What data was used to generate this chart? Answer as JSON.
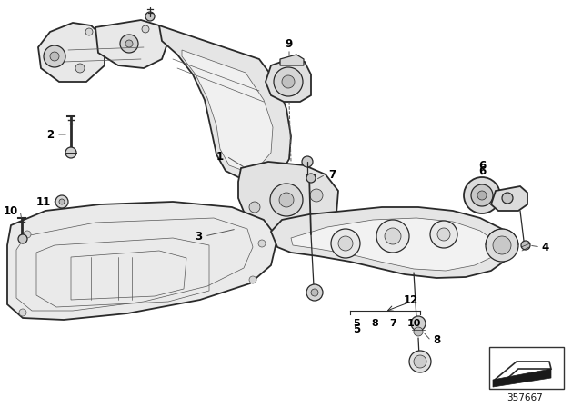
{
  "bg": "#f5f5f5",
  "fg": "#1a1a1a",
  "part_number": "357667",
  "fig_w": 6.4,
  "fig_h": 4.48,
  "dpi": 100,
  "border_color": "#cccccc",
  "img_bg": "#f0f0f0"
}
